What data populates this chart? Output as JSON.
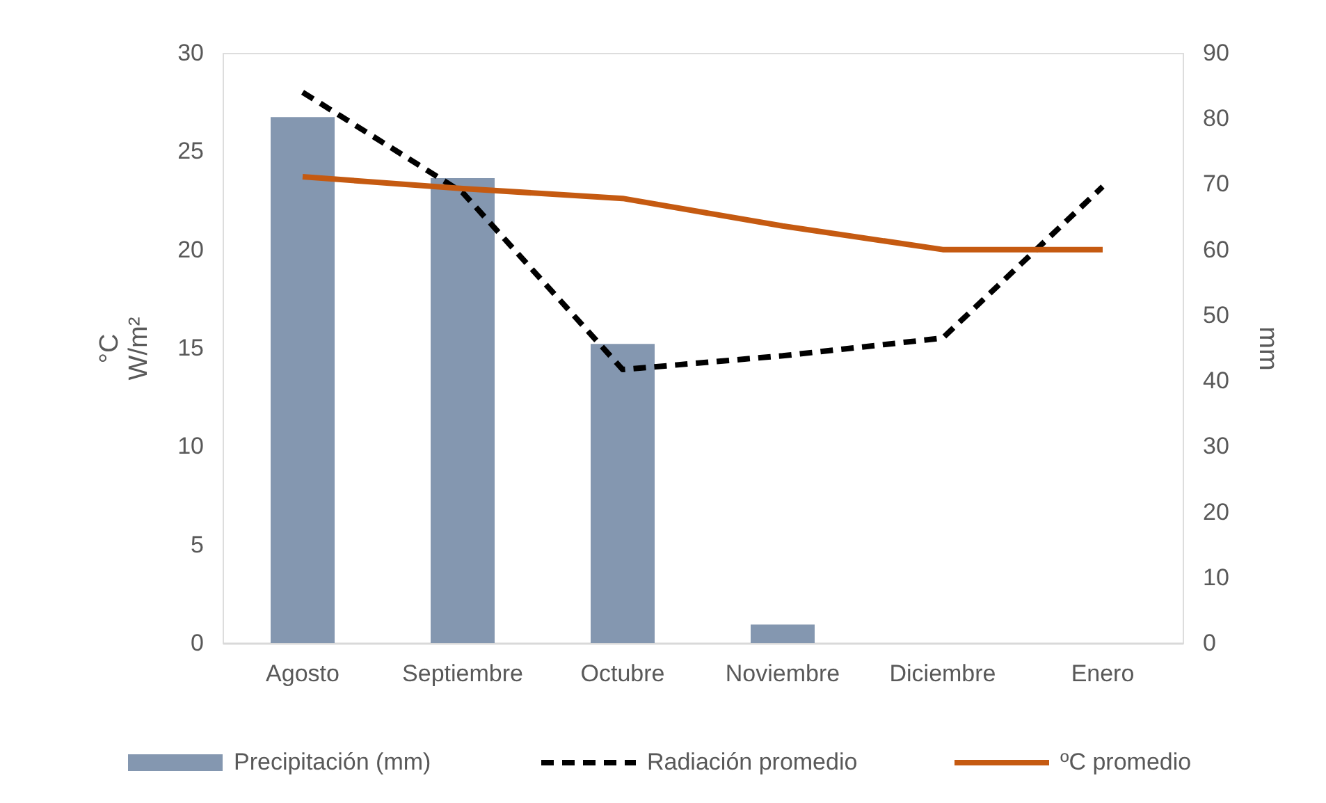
{
  "chart_data": {
    "type": "bar",
    "categories": [
      "Agosto",
      "Septiembre",
      "Octubre",
      "Noviembre",
      "Diciembre",
      "Enero"
    ],
    "ylabel": "°C\nW/m²",
    "y2label": "mm",
    "ylim": [
      0,
      30
    ],
    "yticks": [
      0,
      5,
      10,
      15,
      20,
      25,
      30
    ],
    "y2lim": [
      0,
      90
    ],
    "y2ticks": [
      0,
      10,
      20,
      30,
      40,
      50,
      60,
      70,
      80,
      90
    ],
    "grid": false,
    "legend": "bottom",
    "series": [
      {
        "name": "Precipitación (mm)",
        "axis": "y2",
        "color": "#8497b0",
        "values": [
          80.2,
          70.9,
          45.6,
          2.8,
          0,
          0
        ]
      },
      {
        "name": "Radiación promedio",
        "type": "line",
        "color": "#000000",
        "line_style": "dashed",
        "values": [
          28.0,
          22.9,
          13.9,
          14.6,
          15.5,
          23.2
        ]
      },
      {
        "name": "ºC promedio",
        "type": "line",
        "color": "#c55a11",
        "line_style": "solid",
        "values": [
          23.7,
          23.1,
          22.6,
          21.2,
          20.0,
          20.0
        ]
      }
    ]
  }
}
